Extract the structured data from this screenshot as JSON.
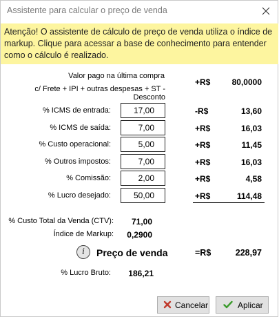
{
  "window": {
    "title": "Assistente para calcular o preço de venda",
    "close_icon": "close-icon"
  },
  "banner": {
    "text": "Atenção! O assistente de cálculo de preço de venda utiliza o índice de markup. Clique para acessar a base de conhecimento para entender como o cálculo é realizado."
  },
  "last_purchase": {
    "label_line1": "Valor pago na última compra",
    "label_line2": "c/ Frete + IPI + outras despesas + ST - Desconto",
    "currency": "+R$",
    "value": "80,0000"
  },
  "rows": [
    {
      "label": "% ICMS de entrada:",
      "input": "17,00",
      "currency": "-R$",
      "value": "13,60"
    },
    {
      "label": "% ICMS de saída:",
      "input": "7,00",
      "currency": "+R$",
      "value": "16,03"
    },
    {
      "label": "% Custo operacional:",
      "input": "5,00",
      "currency": "+R$",
      "value": "11,45"
    },
    {
      "label": "% Outros impostos:",
      "input": "7,00",
      "currency": "+R$",
      "value": "16,03"
    },
    {
      "label": "% Comissão:",
      "input": "2,00",
      "currency": "+R$",
      "value": "4,58"
    },
    {
      "label": "% Lucro desejado:",
      "input": "50,00",
      "currency": "+R$",
      "value": "114,48"
    }
  ],
  "summary": {
    "ctv_label": "% Custo Total da Venda (CTV):",
    "ctv_value": "71,00",
    "markup_label": "Índice de Markup:",
    "markup_value": "0,2900"
  },
  "price": {
    "info_icon": "info-icon",
    "info_glyph": "i",
    "label": "Preço de venda",
    "currency": "=R$",
    "value": "228,97"
  },
  "gross_profit": {
    "label": "% Lucro Bruto:",
    "value": "186,21"
  },
  "buttons": {
    "cancel_label": "Cancelar",
    "apply_label": "Aplicar"
  },
  "colors": {
    "banner_bg": "#fdf59f",
    "cancel_icon": "#c0392b",
    "apply_icon": "#3a9b2b"
  }
}
